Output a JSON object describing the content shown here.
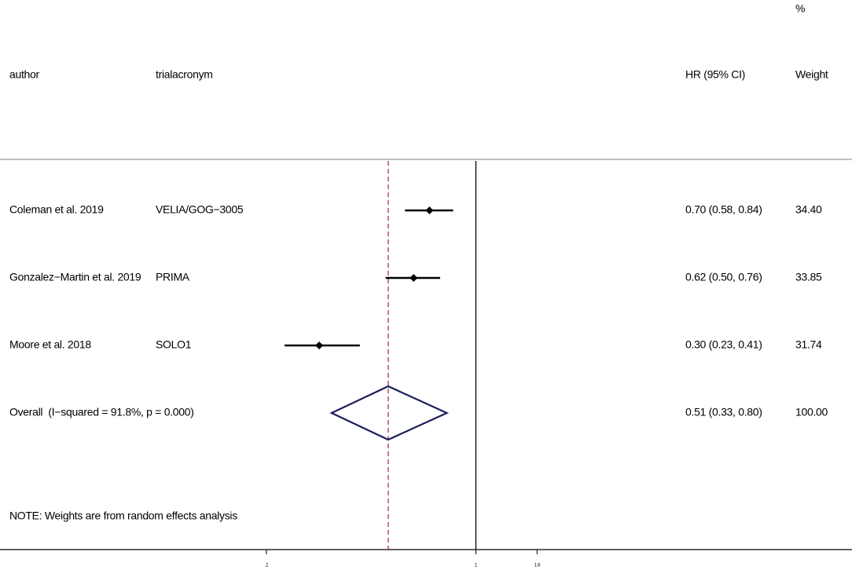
{
  "chart_data": {
    "type": "forest",
    "headers": {
      "author": "author",
      "trial": "trialacronym",
      "hr": "HR (95% CI)",
      "weight_top": "%",
      "weight": "Weight"
    },
    "categories": [
      "Coleman et al. 2019",
      "Gonzalez−Martin et al. 2019",
      "Moore et al. 2018"
    ],
    "trials": [
      "VELIA/GOG−3005",
      "PRIMA",
      "SOLO1"
    ],
    "values": [
      0.7,
      0.62,
      0.3
    ],
    "lower": [
      0.58,
      0.5,
      0.23
    ],
    "upper": [
      0.84,
      0.76,
      0.41
    ],
    "value_labels": [
      "0.70 (0.58, 0.84)",
      "0.62 (0.50, 0.76)",
      "0.30 (0.23, 0.41)"
    ],
    "weights": [
      34.4,
      33.85,
      31.74
    ],
    "weight_labels": [
      "34.40",
      "33.85",
      "31.74"
    ],
    "overall": {
      "label": "Overall  (I−squared = 91.8%, p = 0.000)",
      "value": 0.51,
      "lower": 0.33,
      "upper": 0.8,
      "value_label": "0.51 (0.33, 0.80)",
      "weight": 100,
      "weight_label": "100.00"
    },
    "note": "NOTE: Weights are from random effects analysis",
    "xlim": [
      0.16,
      1.77
    ],
    "xticks": [
      {
        "value": 0.2,
        "label": ".2"
      },
      1,
      1.6
    ],
    "log_x": true,
    "null_line": 1,
    "color": "#000000",
    "overall_color": "#1a1f5c",
    "reference_color": "#b22222"
  }
}
